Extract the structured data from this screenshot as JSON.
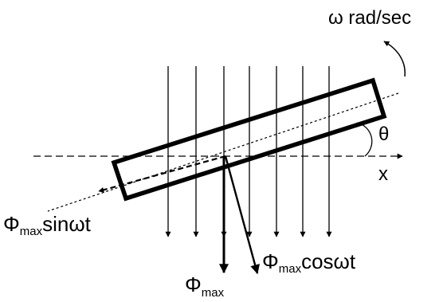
{
  "colors": {
    "stroke": "#000000",
    "background": "#ffffff"
  },
  "labels": {
    "omega": "ω rad/sec",
    "theta": "θ",
    "x_axis": "x",
    "phi_symbol": "Φ",
    "max_sub": "max",
    "sin_term": "sinωt",
    "cos_term": "cosωt"
  }
}
